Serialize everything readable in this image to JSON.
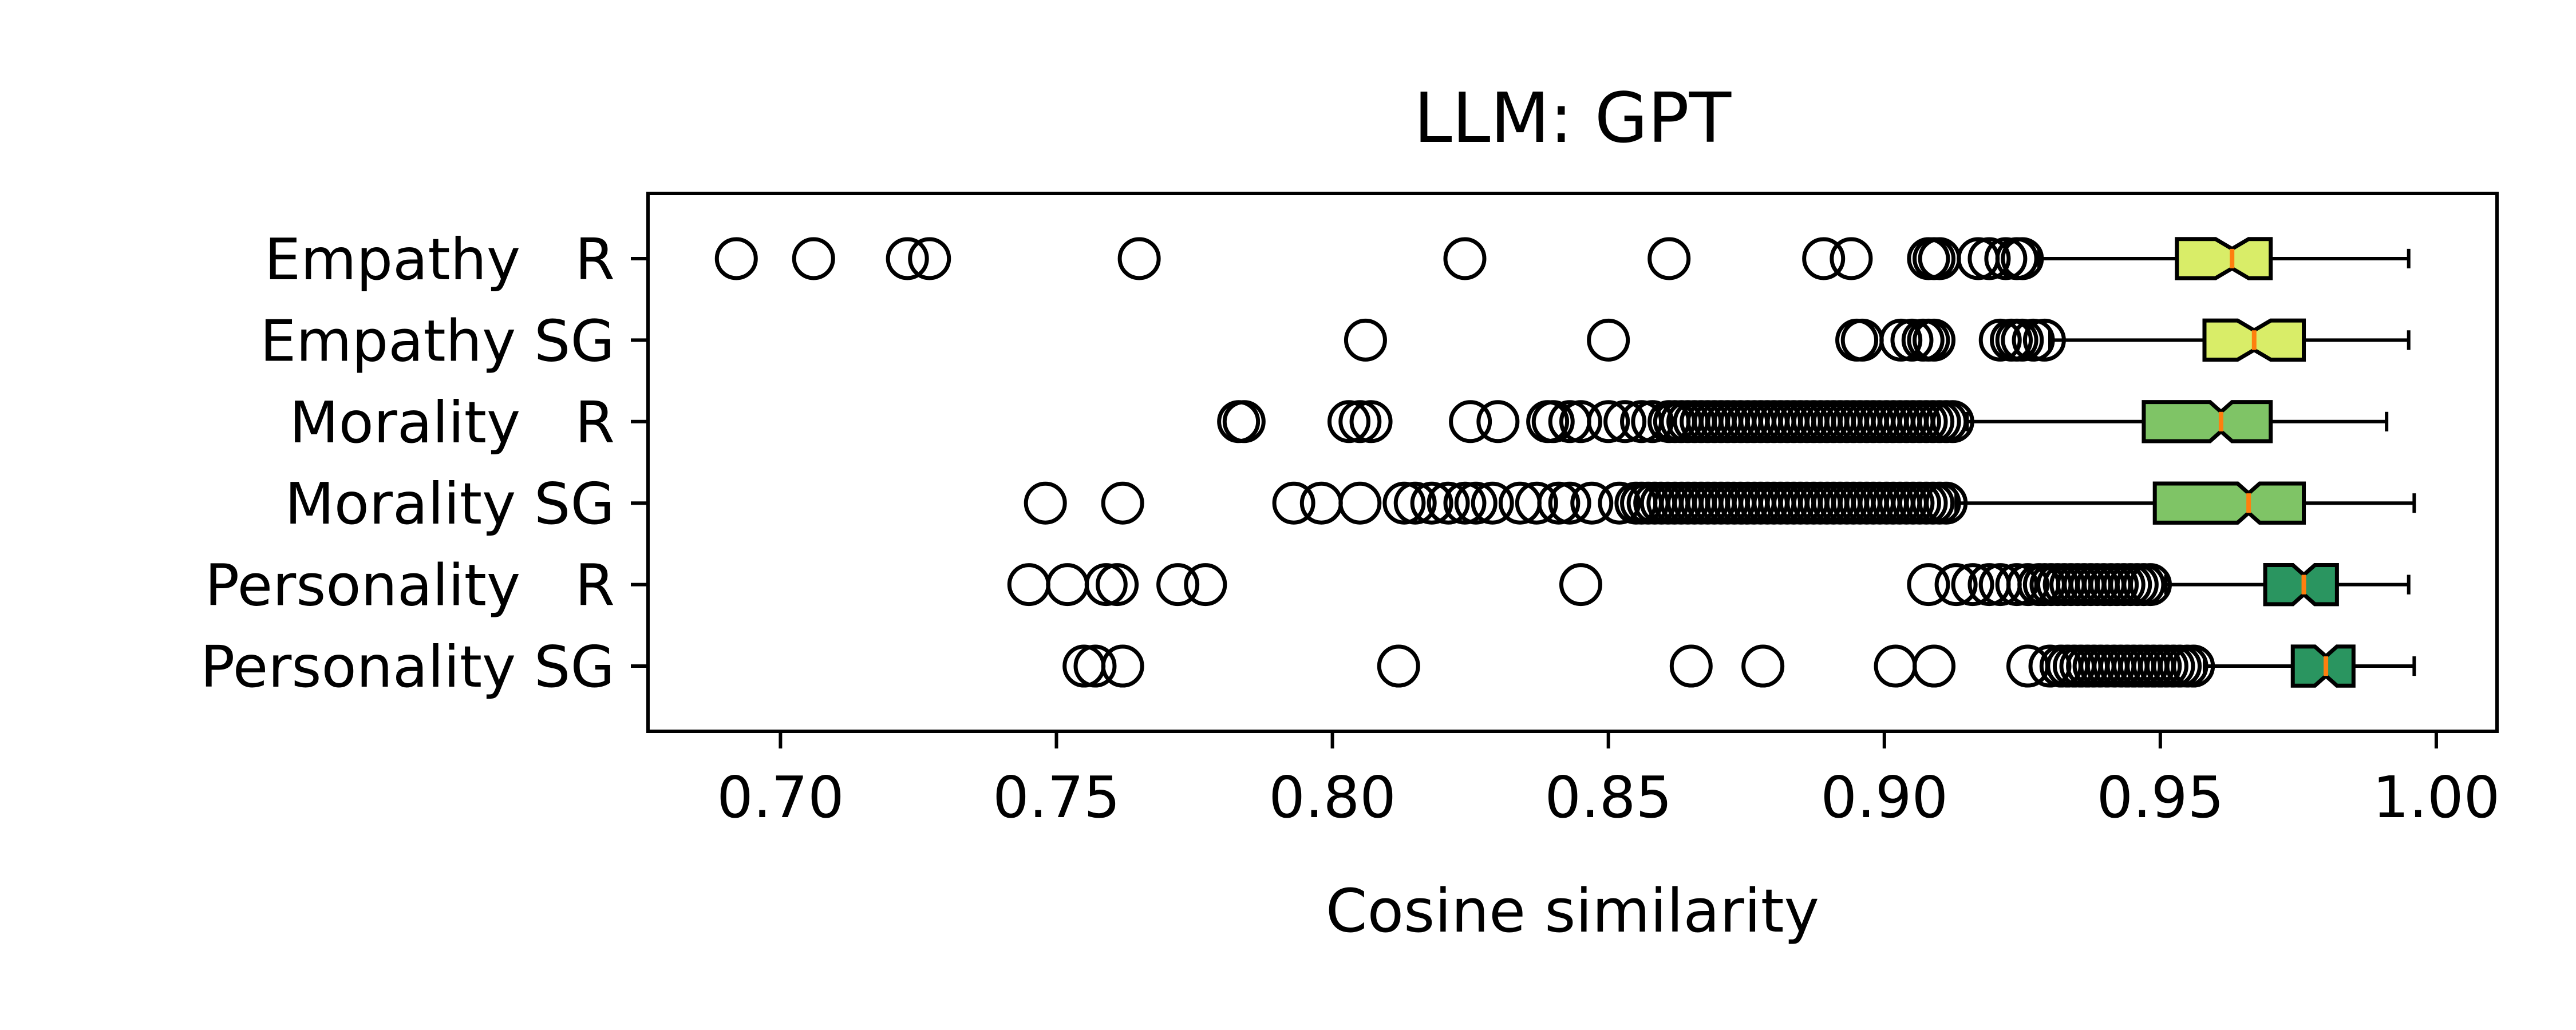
{
  "chart_data": {
    "type": "box",
    "orientation": "horizontal",
    "notched": true,
    "title": "LLM: GPT",
    "xlabel": "Cosine similarity",
    "ylabel": "",
    "xlim": [
      0.676,
      1.011
    ],
    "xticks": [
      0.7,
      0.75,
      0.8,
      0.85,
      0.9,
      0.95,
      1.0
    ],
    "xtick_labels": [
      "0.70",
      "0.75",
      "0.80",
      "0.85",
      "0.90",
      "0.95",
      "1.00"
    ],
    "grid": false,
    "median_color": "#ff7f0e",
    "categories": [
      "Empathy   R",
      "Empathy SG",
      "Morality   R",
      "Morality SG",
      "Personality   R",
      "Personality SG"
    ],
    "series": [
      {
        "color": "#d9ed68",
        "q1": 0.953,
        "median": 0.963,
        "q3": 0.97,
        "notch_low": 0.96,
        "notch_high": 0.966,
        "whisker_low": 0.928,
        "whisker_high": 0.995,
        "outliers": [
          0.692,
          0.706,
          0.723,
          0.727,
          0.765,
          0.824,
          0.861,
          0.889,
          0.894,
          0.908,
          0.909,
          0.91,
          0.917,
          0.919,
          0.922,
          0.924,
          0.925
        ]
      },
      {
        "color": "#d9ed68",
        "q1": 0.958,
        "median": 0.967,
        "q3": 0.976,
        "notch_low": 0.964,
        "notch_high": 0.97,
        "whisker_low": 0.93,
        "whisker_high": 0.995,
        "outliers": [
          0.806,
          0.85,
          0.895,
          0.896,
          0.903,
          0.905,
          0.907,
          0.908,
          0.909,
          0.921,
          0.923,
          0.924,
          0.925,
          0.927,
          0.929
        ]
      },
      {
        "color": "#7fc466",
        "q1": 0.947,
        "median": 0.961,
        "q3": 0.97,
        "notch_low": 0.959,
        "notch_high": 0.963,
        "whisker_low": 0.915,
        "whisker_high": 0.991,
        "outliers": [
          0.783,
          0.784,
          0.803,
          0.805,
          0.807,
          0.825,
          0.83,
          0.839,
          0.84,
          0.843,
          0.845,
          0.85,
          0.853,
          0.856,
          0.858,
          0.861
        ],
        "dense_range": [
          0.862,
          0.913
        ]
      },
      {
        "color": "#7fc466",
        "q1": 0.949,
        "median": 0.966,
        "q3": 0.976,
        "notch_low": 0.964,
        "notch_high": 0.968,
        "whisker_low": 0.913,
        "whisker_high": 0.996,
        "outliers": [
          0.748,
          0.762,
          0.793,
          0.798,
          0.805,
          0.813,
          0.815,
          0.818,
          0.821,
          0.824,
          0.826,
          0.829,
          0.834,
          0.837,
          0.841,
          0.843,
          0.847,
          0.852,
          0.855
        ],
        "dense_range": [
          0.856,
          0.912
        ]
      },
      {
        "color": "#2a9560",
        "q1": 0.969,
        "median": 0.976,
        "q3": 0.982,
        "notch_low": 0.974,
        "notch_high": 0.978,
        "whisker_low": 0.951,
        "whisker_high": 0.995,
        "outliers": [
          0.745,
          0.752,
          0.759,
          0.761,
          0.772,
          0.777,
          0.845,
          0.908,
          0.913,
          0.916,
          0.919,
          0.921,
          0.924,
          0.926,
          0.928
        ],
        "dense_range": [
          0.929,
          0.949
        ]
      },
      {
        "color": "#2a9560",
        "q1": 0.974,
        "median": 0.98,
        "q3": 0.985,
        "notch_low": 0.978,
        "notch_high": 0.982,
        "whisker_low": 0.958,
        "whisker_high": 0.996,
        "outliers": [
          0.755,
          0.757,
          0.762,
          0.812,
          0.865,
          0.878,
          0.902,
          0.909,
          0.926,
          0.93
        ],
        "dense_range": [
          0.932,
          0.956
        ]
      }
    ]
  }
}
